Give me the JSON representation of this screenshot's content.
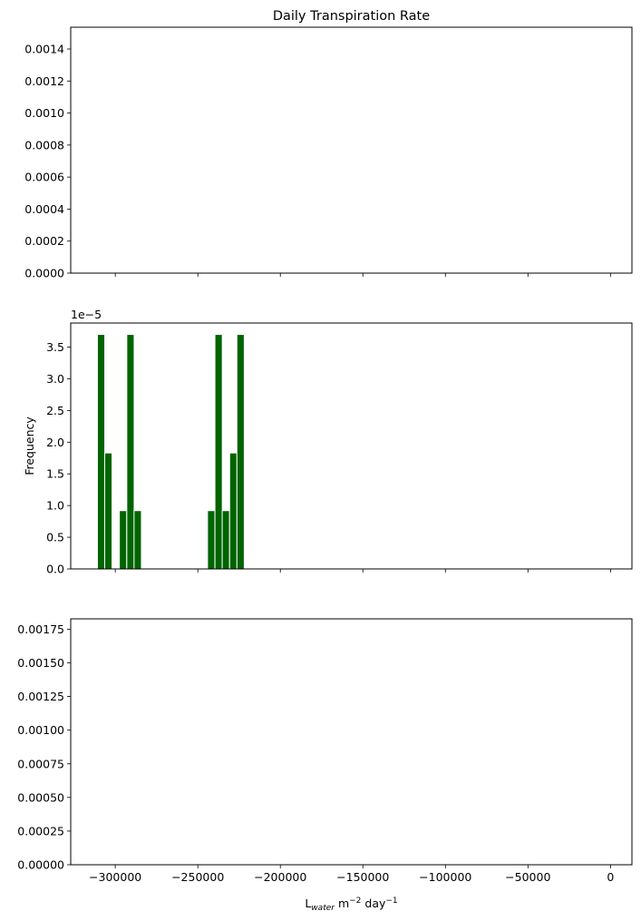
{
  "figure": {
    "title": "Daily Transpiration Rate"
  },
  "chart_data": [
    {
      "type": "bar",
      "title": "Daily Transpiration Rate",
      "xlabel": "",
      "ylabel": "",
      "xlim": [
        -327000,
        13000
      ],
      "ylim": [
        0,
        0.001536
      ],
      "yticks": [
        0.0,
        0.0002,
        0.0004,
        0.0006,
        0.0008,
        0.001,
        0.0012,
        0.0014
      ],
      "ytick_labels": [
        "0.0000",
        "0.0002",
        "0.0004",
        "0.0006",
        "0.0008",
        "0.0010",
        "0.0012",
        "0.0014"
      ],
      "offset_text": "",
      "xtick_labels_visible": false,
      "grid": false,
      "bars": []
    },
    {
      "type": "bar",
      "title": "",
      "xlabel": "",
      "ylabel": "Frequency",
      "xlim": [
        -327000,
        13000
      ],
      "ylim": [
        0,
        3.88
      ],
      "yticks": [
        0.0,
        0.5,
        1.0,
        1.5,
        2.0,
        2.5,
        3.0,
        3.5
      ],
      "ytick_labels": [
        "0.0",
        "0.5",
        "1.0",
        "1.5",
        "2.0",
        "2.5",
        "3.0",
        "3.5"
      ],
      "offset_text": "1e−5",
      "xtick_labels_visible": false,
      "grid": false,
      "bar_color": "#006400",
      "bar_edge_color": "#ffffff",
      "bar_width": 4450,
      "bars": [
        {
          "x": -308600,
          "value": 3.7
        },
        {
          "x": -304200,
          "value": 1.83
        },
        {
          "x": -295300,
          "value": 0.92
        },
        {
          "x": -290800,
          "value": 3.7
        },
        {
          "x": -286400,
          "value": 0.92
        },
        {
          "x": -241900,
          "value": 0.92
        },
        {
          "x": -237400,
          "value": 3.7
        },
        {
          "x": -233000,
          "value": 0.92
        },
        {
          "x": -228500,
          "value": 1.83
        },
        {
          "x": -224100,
          "value": 3.7
        }
      ]
    },
    {
      "type": "bar",
      "title": "",
      "xlabel": "L_water m^-2 day^-1",
      "ylabel": "",
      "xlim": [
        -327000,
        13000
      ],
      "ylim": [
        0,
        0.001827
      ],
      "yticks": [
        0.0,
        0.00025,
        0.0005,
        0.00075,
        0.001,
        0.00125,
        0.0015,
        0.00175
      ],
      "ytick_labels": [
        "0.00000",
        "0.00025",
        "0.00050",
        "0.00075",
        "0.00100",
        "0.00125",
        "0.00150",
        "0.00175"
      ],
      "offset_text": "",
      "xtick_labels_visible": true,
      "grid": false,
      "bars": []
    }
  ],
  "shared_x": {
    "ticks": [
      -300000,
      -250000,
      -200000,
      -150000,
      -100000,
      -50000,
      0
    ],
    "tick_labels": [
      "−300000",
      "−250000",
      "−200000",
      "−150000",
      "−100000",
      "−50000",
      "0"
    ]
  },
  "xlabel_parts": {
    "base": "L",
    "sub": "water",
    "middle": " m",
    "sup1": "−2",
    "tail": " day",
    "sup2": "−1"
  }
}
